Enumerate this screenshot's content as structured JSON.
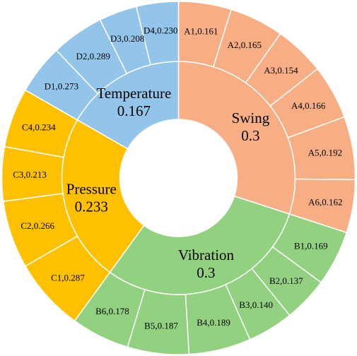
{
  "chart_data": {
    "type": "sunburst",
    "groups": [
      {
        "name": "Swing",
        "weight": "0.3",
        "value": 0.3,
        "color": "#F8AE84",
        "children": [
          {
            "label": "A1,0.161",
            "value": 0.161
          },
          {
            "label": "A2,0.165",
            "value": 0.165
          },
          {
            "label": "A3,0.154",
            "value": 0.154
          },
          {
            "label": "A4,0.166",
            "value": 0.166
          },
          {
            "label": "A5,0.192",
            "value": 0.192
          },
          {
            "label": "A6,0.162",
            "value": 0.162
          }
        ]
      },
      {
        "name": "Vibration",
        "weight": "0.3",
        "value": 0.3,
        "color": "#92D180",
        "children": [
          {
            "label": "B1,0.169",
            "value": 0.169
          },
          {
            "label": "B2,0.137",
            "value": 0.137
          },
          {
            "label": "B3,0.140",
            "value": 0.14
          },
          {
            "label": "B4,0.189",
            "value": 0.189
          },
          {
            "label": "B5,0.187",
            "value": 0.187
          },
          {
            "label": "B6,0.178",
            "value": 0.178
          }
        ]
      },
      {
        "name": "Pressure",
        "weight": "0.233",
        "value": 0.233,
        "color": "#FFC000",
        "children": [
          {
            "label": "C1,0.287",
            "value": 0.287
          },
          {
            "label": "C2,0.266",
            "value": 0.266
          },
          {
            "label": "C3,0.213",
            "value": 0.213
          },
          {
            "label": "C4,0.234",
            "value": 0.234
          }
        ]
      },
      {
        "name": "Temperature",
        "weight": "0.167",
        "value": 0.167,
        "color": "#93C5EA",
        "children": [
          {
            "label": "D1,0.273",
            "value": 0.273
          },
          {
            "label": "D2,0.289",
            "value": 0.289
          },
          {
            "label": "D3,0.208",
            "value": 0.208
          },
          {
            "label": "D4,0.230",
            "value": 0.23
          }
        ]
      }
    ]
  }
}
